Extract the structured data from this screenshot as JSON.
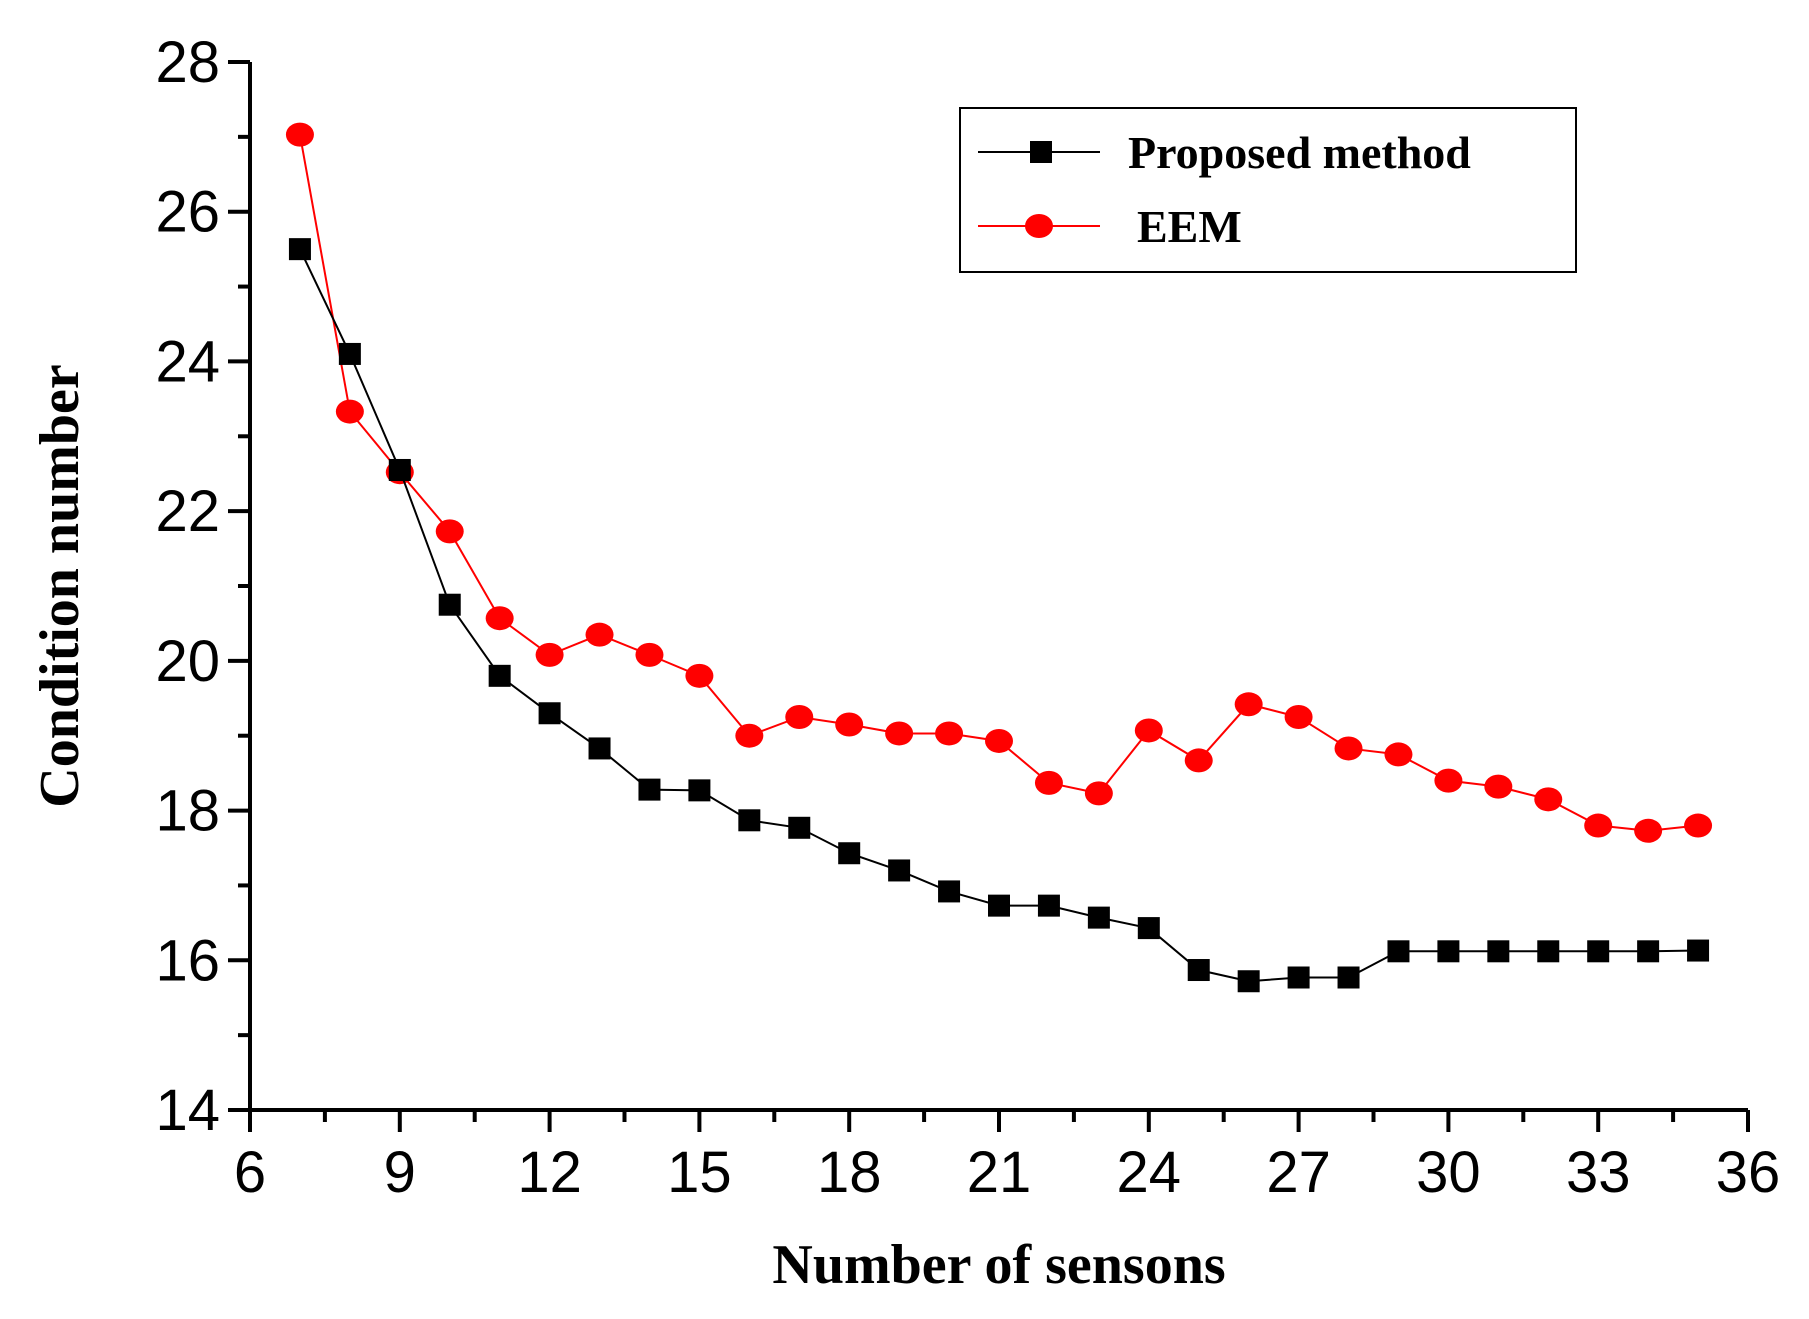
{
  "chart_data": {
    "type": "line",
    "title": "",
    "xlabel": "Number of sensons",
    "ylabel": "Condition number",
    "xlim": [
      6,
      36
    ],
    "ylim": [
      14,
      28
    ],
    "xticks": [
      6,
      9,
      12,
      15,
      18,
      21,
      24,
      27,
      30,
      33,
      36
    ],
    "yticks": [
      14,
      16,
      18,
      20,
      22,
      24,
      26,
      28
    ],
    "grid": false,
    "legend_position": "top-right",
    "x": [
      7,
      8,
      9,
      10,
      11,
      12,
      13,
      14,
      15,
      16,
      17,
      18,
      19,
      20,
      21,
      22,
      23,
      24,
      25,
      26,
      27,
      28,
      29,
      30,
      31,
      32,
      33,
      34,
      35
    ],
    "series": [
      {
        "name": "Proposed method",
        "color": "#000000",
        "marker": "square",
        "values": [
          25.5,
          24.1,
          22.55,
          20.75,
          19.8,
          19.3,
          18.83,
          18.28,
          18.27,
          17.87,
          17.77,
          17.43,
          17.2,
          16.92,
          16.73,
          16.73,
          16.57,
          16.43,
          15.87,
          15.72,
          15.77,
          15.77,
          16.12,
          16.12,
          16.12,
          16.12,
          16.12,
          16.12,
          16.13
        ]
      },
      {
        "name": "EEM",
        "color": "#ff0000",
        "marker": "circle",
        "values": [
          27.03,
          23.33,
          22.52,
          21.73,
          20.57,
          20.08,
          20.35,
          20.08,
          19.8,
          19.0,
          19.25,
          19.15,
          19.03,
          19.03,
          18.93,
          18.37,
          18.23,
          19.07,
          18.67,
          19.42,
          19.25,
          18.83,
          18.75,
          18.4,
          18.32,
          18.15,
          17.8,
          17.73,
          17.8
        ]
      }
    ]
  }
}
